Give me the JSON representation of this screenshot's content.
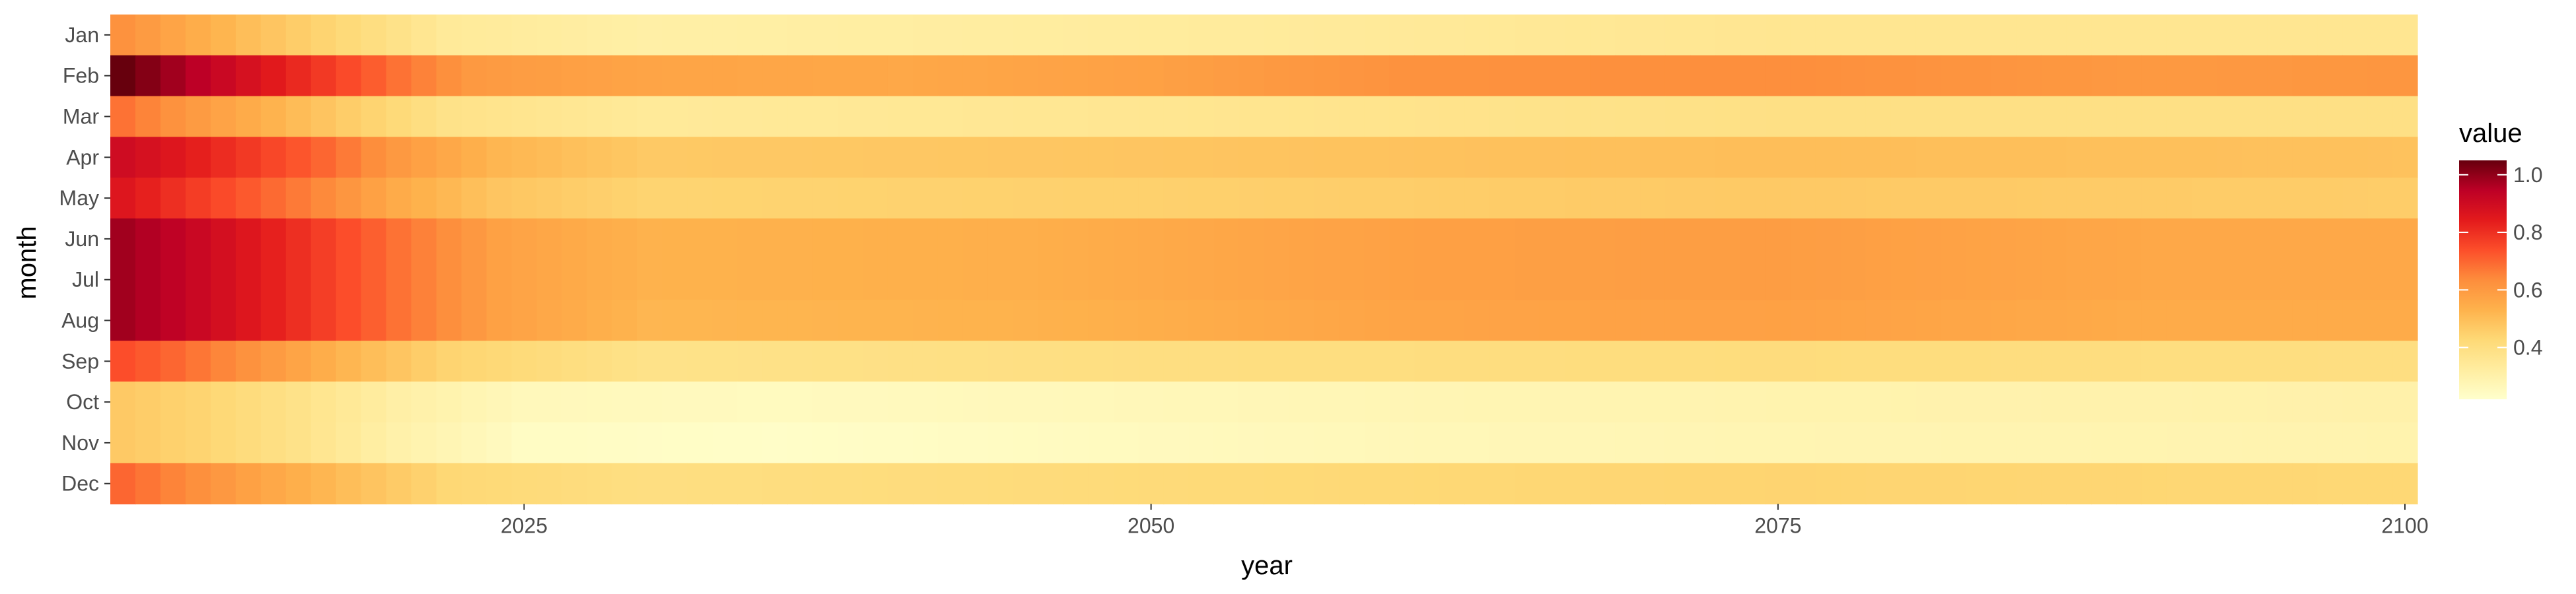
{
  "chart_data": {
    "type": "heatmap",
    "x_label": "year",
    "y_label": "month",
    "x_range": [
      2009,
      2100
    ],
    "x_ticks": [
      2025,
      2050,
      2075,
      2100
    ],
    "x_tick_labels": [
      "2025",
      "2050",
      "2075",
      "2100"
    ],
    "months": [
      "Jan",
      "Feb",
      "Mar",
      "Apr",
      "May",
      "Jun",
      "Jul",
      "Aug",
      "Sep",
      "Oct",
      "Nov",
      "Dec"
    ],
    "legend": {
      "title": "value",
      "ticks": [
        0.4,
        0.6,
        0.8,
        1.0
      ],
      "tick_labels": [
        "0.4",
        "0.6",
        "0.8",
        "1.0"
      ],
      "range": [
        0.22,
        1.05
      ],
      "palette": "YlOrRd"
    },
    "row_profiles": {
      "Jan": [
        [
          2009,
          0.62
        ],
        [
          2011,
          0.57
        ],
        [
          2014,
          0.5
        ],
        [
          2018,
          0.42
        ],
        [
          2022,
          0.34
        ],
        [
          2030,
          0.31
        ],
        [
          2050,
          0.33
        ],
        [
          2075,
          0.36
        ],
        [
          2100,
          0.36
        ]
      ],
      "Feb": [
        [
          2009,
          1.05
        ],
        [
          2011,
          0.98
        ],
        [
          2014,
          0.88
        ],
        [
          2017,
          0.78
        ],
        [
          2020,
          0.68
        ],
        [
          2023,
          0.6
        ],
        [
          2030,
          0.57
        ],
        [
          2040,
          0.56
        ],
        [
          2050,
          0.58
        ],
        [
          2060,
          0.62
        ],
        [
          2075,
          0.63
        ],
        [
          2090,
          0.6
        ],
        [
          2100,
          0.61
        ]
      ],
      "Mar": [
        [
          2009,
          0.68
        ],
        [
          2011,
          0.62
        ],
        [
          2014,
          0.55
        ],
        [
          2018,
          0.46
        ],
        [
          2022,
          0.38
        ],
        [
          2030,
          0.34
        ],
        [
          2050,
          0.36
        ],
        [
          2075,
          0.39
        ],
        [
          2100,
          0.39
        ]
      ],
      "Apr": [
        [
          2009,
          0.9
        ],
        [
          2011,
          0.86
        ],
        [
          2014,
          0.78
        ],
        [
          2017,
          0.7
        ],
        [
          2020,
          0.6
        ],
        [
          2024,
          0.52
        ],
        [
          2030,
          0.47
        ],
        [
          2050,
          0.48
        ],
        [
          2075,
          0.5
        ],
        [
          2100,
          0.49
        ]
      ],
      "May": [
        [
          2009,
          0.86
        ],
        [
          2011,
          0.8
        ],
        [
          2014,
          0.72
        ],
        [
          2017,
          0.64
        ],
        [
          2020,
          0.55
        ],
        [
          2024,
          0.48
        ],
        [
          2030,
          0.44
        ],
        [
          2050,
          0.45
        ],
        [
          2075,
          0.47
        ],
        [
          2100,
          0.46
        ]
      ],
      "Jun": [
        [
          2009,
          0.98
        ],
        [
          2011,
          0.94
        ],
        [
          2014,
          0.86
        ],
        [
          2017,
          0.77
        ],
        [
          2020,
          0.68
        ],
        [
          2024,
          0.58
        ],
        [
          2030,
          0.53
        ],
        [
          2045,
          0.54
        ],
        [
          2060,
          0.58
        ],
        [
          2075,
          0.59
        ],
        [
          2090,
          0.56
        ],
        [
          2100,
          0.56
        ]
      ],
      "Jul": [
        [
          2009,
          0.98
        ],
        [
          2011,
          0.94
        ],
        [
          2014,
          0.86
        ],
        [
          2017,
          0.77
        ],
        [
          2020,
          0.68
        ],
        [
          2024,
          0.58
        ],
        [
          2030,
          0.53
        ],
        [
          2045,
          0.54
        ],
        [
          2060,
          0.58
        ],
        [
          2075,
          0.59
        ],
        [
          2090,
          0.56
        ],
        [
          2100,
          0.56
        ]
      ],
      "Aug": [
        [
          2009,
          0.98
        ],
        [
          2011,
          0.94
        ],
        [
          2014,
          0.86
        ],
        [
          2017,
          0.77
        ],
        [
          2020,
          0.68
        ],
        [
          2024,
          0.58
        ],
        [
          2030,
          0.52
        ],
        [
          2045,
          0.53
        ],
        [
          2060,
          0.57
        ],
        [
          2075,
          0.58
        ],
        [
          2090,
          0.55
        ],
        [
          2100,
          0.55
        ]
      ],
      "Sep": [
        [
          2009,
          0.74
        ],
        [
          2011,
          0.7
        ],
        [
          2014,
          0.62
        ],
        [
          2018,
          0.52
        ],
        [
          2022,
          0.44
        ],
        [
          2030,
          0.38
        ],
        [
          2050,
          0.4
        ],
        [
          2075,
          0.41
        ],
        [
          2100,
          0.4
        ]
      ],
      "Oct": [
        [
          2009,
          0.47
        ],
        [
          2012,
          0.44
        ],
        [
          2016,
          0.38
        ],
        [
          2020,
          0.31
        ],
        [
          2025,
          0.26
        ],
        [
          2035,
          0.25
        ],
        [
          2055,
          0.27
        ],
        [
          2075,
          0.29
        ],
        [
          2100,
          0.3
        ]
      ],
      "Nov": [
        [
          2009,
          0.47
        ],
        [
          2012,
          0.44
        ],
        [
          2016,
          0.38
        ],
        [
          2020,
          0.3
        ],
        [
          2025,
          0.24
        ],
        [
          2035,
          0.23
        ],
        [
          2055,
          0.26
        ],
        [
          2075,
          0.28
        ],
        [
          2100,
          0.29
        ]
      ],
      "Dec": [
        [
          2009,
          0.7
        ],
        [
          2011,
          0.65
        ],
        [
          2014,
          0.58
        ],
        [
          2018,
          0.5
        ],
        [
          2022,
          0.43
        ],
        [
          2030,
          0.4
        ],
        [
          2050,
          0.42
        ],
        [
          2075,
          0.44
        ],
        [
          2100,
          0.43
        ]
      ]
    }
  }
}
